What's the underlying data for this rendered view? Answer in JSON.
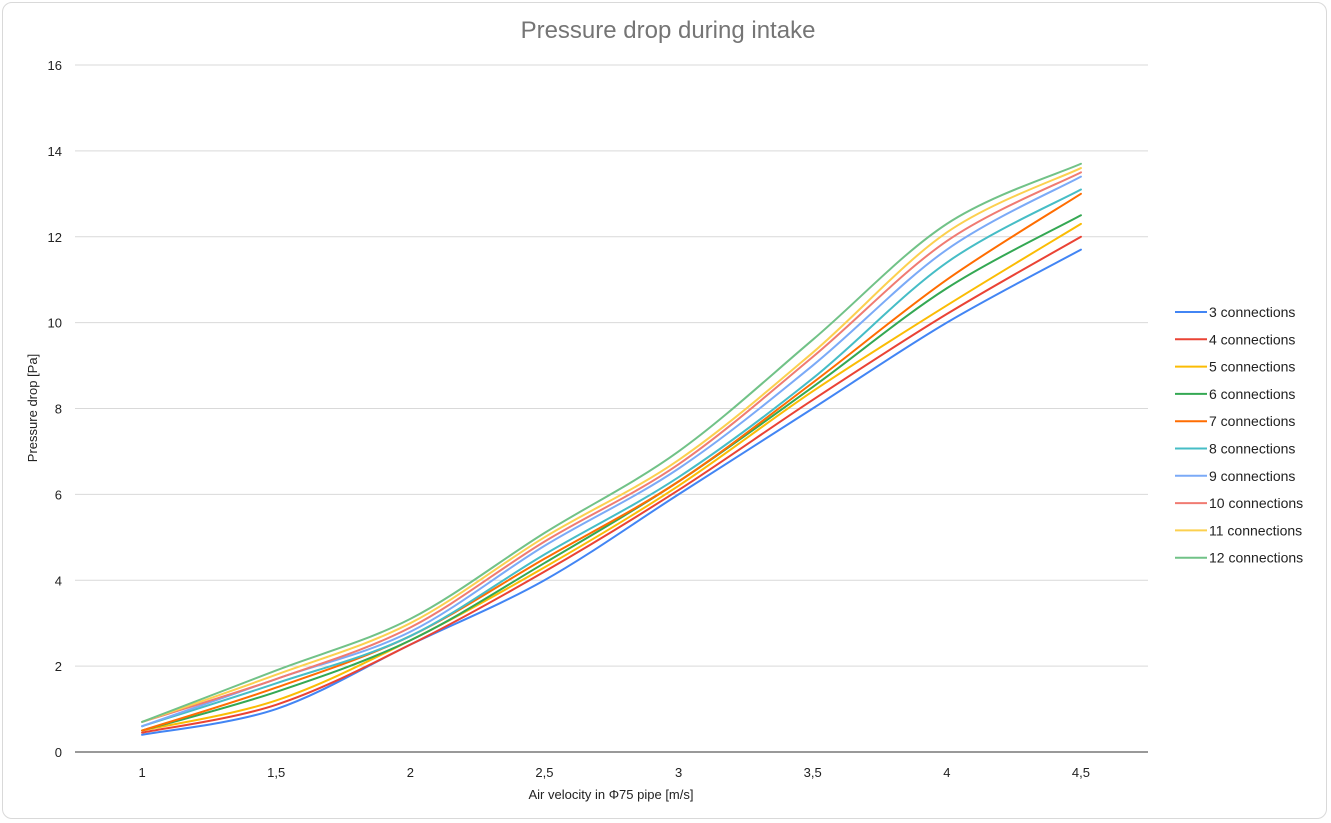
{
  "chart_data": {
    "type": "line",
    "title": "Pressure drop during intake",
    "xlabel": "Air velocity in Φ75 pipe [m/s]",
    "ylabel": "Pressure drop [Pa]",
    "x": [
      1,
      1.5,
      2,
      2.5,
      3,
      3.5,
      4,
      4.5
    ],
    "x_tick_labels": [
      "1",
      "1,5",
      "2",
      "2,5",
      "3",
      "3,5",
      "4",
      "4,5"
    ],
    "ylim": [
      0,
      16
    ],
    "y_ticks": [
      0,
      2,
      4,
      6,
      8,
      10,
      12,
      14,
      16
    ],
    "y_tick_labels": [
      "0",
      "2",
      "4",
      "6",
      "8",
      "10",
      "12",
      "14",
      "16"
    ],
    "grid": "horizontal",
    "legend_position": "right",
    "smooth": true,
    "series": [
      {
        "name": "3 connections",
        "color": "#4285f4",
        "values": [
          0.4,
          1.0,
          2.5,
          4.0,
          6.0,
          8.0,
          10.0,
          11.7
        ]
      },
      {
        "name": "4 connections",
        "color": "#ea4335",
        "values": [
          0.45,
          1.1,
          2.5,
          4.2,
          6.1,
          8.2,
          10.2,
          12.0
        ]
      },
      {
        "name": "5 connections",
        "color": "#fbbc04",
        "values": [
          0.5,
          1.2,
          2.6,
          4.3,
          6.2,
          8.4,
          10.4,
          12.3
        ]
      },
      {
        "name": "6 connections",
        "color": "#34a853",
        "values": [
          0.5,
          1.4,
          2.6,
          4.4,
          6.3,
          8.5,
          10.8,
          12.5
        ]
      },
      {
        "name": "7 connections",
        "color": "#ff6d01",
        "values": [
          0.5,
          1.5,
          2.7,
          4.5,
          6.3,
          8.6,
          11.0,
          13.0
        ]
      },
      {
        "name": "8 connections",
        "color": "#46bdc6",
        "values": [
          0.6,
          1.6,
          2.7,
          4.6,
          6.4,
          8.7,
          11.4,
          13.1
        ]
      },
      {
        "name": "9 connections",
        "color": "#7baaf7",
        "values": [
          0.6,
          1.7,
          2.8,
          4.8,
          6.6,
          9.0,
          11.7,
          13.4
        ]
      },
      {
        "name": "10 connections",
        "color": "#f07b72",
        "values": [
          0.7,
          1.7,
          2.9,
          4.9,
          6.7,
          9.2,
          11.9,
          13.5
        ]
      },
      {
        "name": "11 connections",
        "color": "#fcd04f",
        "values": [
          0.7,
          1.8,
          3.0,
          5.0,
          6.8,
          9.3,
          12.1,
          13.6
        ]
      },
      {
        "name": "12 connections",
        "color": "#71c287",
        "values": [
          0.7,
          1.9,
          3.1,
          5.1,
          7.0,
          9.6,
          12.3,
          13.7
        ]
      }
    ]
  }
}
